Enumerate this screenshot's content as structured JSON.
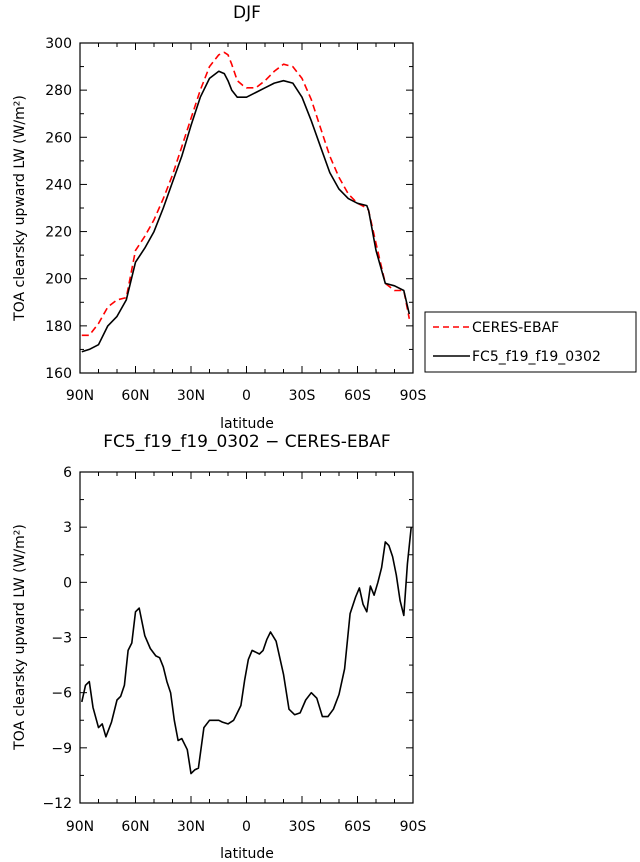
{
  "chart_data": [
    {
      "type": "line",
      "title": "DJF",
      "xlabel": "latitude",
      "ylabel": "TOA clearsky upward LW (W/m²)",
      "xlim": [
        90,
        -90
      ],
      "ylim": [
        160,
        300
      ],
      "xticks": [
        90,
        60,
        30,
        0,
        -30,
        -60,
        -90
      ],
      "xtick_labels": [
        "90N",
        "60N",
        "30N",
        "0",
        "30S",
        "60S",
        "90S"
      ],
      "yticks": [
        160,
        180,
        200,
        220,
        240,
        260,
        280,
        300
      ],
      "ytick_labels": [
        "160",
        "180",
        "200",
        "220",
        "240",
        "260",
        "280",
        "300"
      ],
      "legend_position": "right",
      "series": [
        {
          "name": "CERES-EBAF",
          "color": "#ff0000",
          "dash": "dashed",
          "x": [
            89,
            85,
            80,
            75,
            70,
            65,
            60,
            55,
            50,
            45,
            40,
            35,
            30,
            25,
            20,
            15,
            12,
            10,
            8,
            5,
            2,
            0,
            -5,
            -10,
            -15,
            -20,
            -25,
            -30,
            -35,
            -40,
            -45,
            -50,
            -55,
            -60,
            -65,
            -66,
            -70,
            -75,
            -80,
            -85,
            -88
          ],
          "y": [
            176,
            176,
            181,
            188,
            191,
            192,
            212,
            218,
            225,
            234,
            244,
            256,
            268,
            280,
            290,
            295,
            296,
            295,
            291,
            284,
            282,
            281,
            281,
            284,
            288,
            291,
            290,
            285,
            276,
            264,
            252,
            243,
            236,
            232,
            230,
            229,
            215,
            198,
            195,
            195,
            183
          ]
        },
        {
          "name": "FC5_f19_f19_0302",
          "color": "#000000",
          "dash": "solid",
          "x": [
            89,
            85,
            80,
            75,
            70,
            65,
            60,
            55,
            50,
            45,
            40,
            35,
            30,
            25,
            20,
            15,
            12,
            10,
            8,
            5,
            2,
            0,
            -5,
            -10,
            -15,
            -20,
            -25,
            -30,
            -35,
            -40,
            -45,
            -50,
            -55,
            -60,
            -65,
            -66,
            -70,
            -75,
            -80,
            -85,
            -88
          ],
          "y": [
            169,
            170,
            172,
            180,
            184,
            191,
            207,
            213,
            220,
            230,
            241,
            252,
            265,
            277,
            285,
            288,
            287,
            284,
            280,
            277,
            277,
            277,
            279,
            281,
            283,
            284,
            283,
            277,
            267,
            256,
            245,
            238,
            234,
            232,
            231,
            229,
            212,
            198,
            197,
            195,
            185
          ]
        }
      ]
    },
    {
      "type": "line",
      "title": "FC5_f19_f19_0302 − CERES-EBAF",
      "xlabel": "latitude",
      "ylabel": "TOA clearsky upward LW (W/m²)",
      "xlim": [
        90,
        -90
      ],
      "ylim": [
        -12,
        6
      ],
      "xticks": [
        90,
        60,
        30,
        0,
        -30,
        -60,
        -90
      ],
      "xtick_labels": [
        "90N",
        "60N",
        "30N",
        "0",
        "30S",
        "60S",
        "90S"
      ],
      "yticks": [
        -12,
        -9,
        -6,
        -3,
        0,
        3,
        6
      ],
      "ytick_labels": [
        "−12",
        "−9",
        "−6",
        "−3",
        "0",
        "3",
        "6"
      ],
      "series": [
        {
          "name": "",
          "color": "#000000",
          "dash": "solid",
          "x": [
            89,
            87,
            85,
            83,
            80,
            78,
            76,
            73,
            70,
            68,
            66,
            64,
            62,
            60,
            58,
            55,
            52,
            49,
            47,
            45,
            43,
            41,
            39,
            37,
            35,
            32,
            30,
            28,
            26,
            23,
            20,
            17,
            15,
            13,
            10,
            7,
            5,
            3,
            1,
            -1,
            -3,
            -5,
            -7,
            -9,
            -11,
            -13,
            -16,
            -20,
            -23,
            -26,
            -29,
            -32,
            -35,
            -38,
            -41,
            -44,
            -47,
            -50,
            -53,
            -56,
            -59,
            -61,
            -63,
            -65,
            -67,
            -69,
            -71,
            -73,
            -75,
            -77,
            -79,
            -81,
            -83,
            -85,
            -87,
            -89
          ],
          "y": [
            -6.5,
            -5.6,
            -5.4,
            -6.8,
            -7.9,
            -7.7,
            -8.4,
            -7.6,
            -6.4,
            -6.2,
            -5.6,
            -3.7,
            -3.3,
            -1.6,
            -1.4,
            -2.9,
            -3.6,
            -4.0,
            -4.1,
            -4.6,
            -5.4,
            -6.0,
            -7.5,
            -8.6,
            -8.5,
            -9.1,
            -10.4,
            -10.2,
            -10.1,
            -7.9,
            -7.5,
            -7.5,
            -7.5,
            -7.6,
            -7.7,
            -7.5,
            -7.1,
            -6.7,
            -5.3,
            -4.2,
            -3.7,
            -3.8,
            -3.9,
            -3.7,
            -3.1,
            -2.7,
            -3.2,
            -5.0,
            -6.9,
            -7.2,
            -7.1,
            -6.4,
            -6.0,
            -6.3,
            -7.3,
            -7.3,
            -6.9,
            -6.1,
            -4.7,
            -1.7,
            -0.8,
            -0.3,
            -1.2,
            -1.6,
            -0.2,
            -0.7,
            0.0,
            0.8,
            2.2,
            2.0,
            1.4,
            0.4,
            -1.0,
            -1.8,
            1.0,
            3.0
          ]
        }
      ]
    }
  ],
  "legend": {
    "items": [
      {
        "label": "CERES-EBAF",
        "color": "#ff0000",
        "dash": "dashed"
      },
      {
        "label": "FC5_f19_f19_0302",
        "color": "#000000",
        "dash": "solid"
      }
    ]
  }
}
